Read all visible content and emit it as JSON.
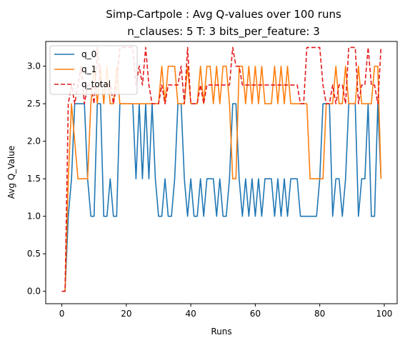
{
  "chart_data": {
    "type": "line",
    "title": "Simp-Cartpole : Avg Q-values over 100 runs",
    "subtitle": "n_clauses: 5 T: 3 bits_per_feature: 3",
    "xlabel": "Runs",
    "ylabel": "Avg Q_Value",
    "xlim": [
      -5,
      104
    ],
    "ylim": [
      -0.165,
      3.33
    ],
    "xticks": [
      0,
      20,
      40,
      60,
      80,
      100
    ],
    "yticks": [
      0.0,
      0.5,
      1.0,
      1.5,
      2.0,
      2.5,
      3.0
    ],
    "legend_position": "top-left",
    "grid": false,
    "x": [
      0,
      1,
      2,
      3,
      4,
      5,
      6,
      7,
      8,
      9,
      10,
      11,
      12,
      13,
      14,
      15,
      16,
      17,
      18,
      19,
      20,
      21,
      22,
      23,
      24,
      25,
      26,
      27,
      28,
      29,
      30,
      31,
      32,
      33,
      34,
      35,
      36,
      37,
      38,
      39,
      40,
      41,
      42,
      43,
      44,
      45,
      46,
      47,
      48,
      49,
      50,
      51,
      52,
      53,
      54,
      55,
      56,
      57,
      58,
      59,
      60,
      61,
      62,
      63,
      64,
      65,
      66,
      67,
      68,
      69,
      70,
      71,
      72,
      73,
      74,
      75,
      76,
      77,
      78,
      79,
      80,
      81,
      82,
      83,
      84,
      85,
      86,
      87,
      88,
      89,
      90,
      91,
      92,
      93,
      94,
      95,
      96,
      97,
      98,
      99
    ],
    "series": [
      {
        "name": "q_0",
        "color": "#1f77b4",
        "style": "solid",
        "values": [
          0,
          0,
          1,
          1.5,
          2.5,
          2.5,
          2.5,
          2.5,
          1.5,
          1,
          1,
          2.5,
          2.5,
          1,
          1,
          1.5,
          1,
          1,
          2.5,
          2.5,
          2.5,
          2.5,
          2.5,
          1.5,
          2.5,
          1.5,
          2.5,
          1.5,
          2.5,
          1.5,
          1,
          1,
          1.5,
          1,
          1,
          1.5,
          2.5,
          2.5,
          1.5,
          1,
          1.5,
          1,
          1,
          1.5,
          1,
          1.5,
          1.5,
          1.5,
          1,
          1.5,
          1,
          1,
          1.5,
          2.5,
          2.5,
          1.5,
          1,
          1.5,
          1,
          1.5,
          1,
          1.5,
          1,
          1.5,
          1.5,
          1.5,
          1,
          1.5,
          1,
          1.5,
          1,
          1.5,
          1.5,
          1.5,
          1,
          1,
          1,
          1,
          1,
          1,
          1.5,
          2.5,
          2.5,
          2.5,
          1,
          1.5,
          1.5,
          1,
          1.5,
          2.5,
          2.5,
          2.5,
          1,
          1.5,
          1.5,
          2.5,
          1,
          1,
          2.5,
          1.5
        ]
      },
      {
        "name": "q_1",
        "color": "#ff7f0e",
        "style": "solid",
        "values": [
          0,
          0,
          1.5,
          2.5,
          2,
          1.5,
          1.5,
          1.5,
          1.5,
          2.5,
          3,
          2.5,
          3,
          2.5,
          3,
          2.5,
          2.5,
          3,
          2.5,
          2.5,
          2.5,
          2.5,
          2.5,
          2.5,
          2.5,
          2.5,
          2.5,
          2.5,
          2.5,
          2.5,
          2.5,
          3,
          2.5,
          3,
          3,
          3,
          2.5,
          2.5,
          2.5,
          3,
          2.5,
          2.5,
          2.5,
          3,
          2.5,
          3,
          3,
          2.5,
          3,
          2.5,
          3,
          3,
          2.5,
          1.5,
          1.5,
          3,
          3,
          2.5,
          3,
          2.5,
          3,
          2.5,
          3,
          2.5,
          2.5,
          2.5,
          3,
          2.5,
          3,
          2.5,
          3,
          2.5,
          2.5,
          2.5,
          2.5,
          2.5,
          2.5,
          1.5,
          1.5,
          1.5,
          1.5,
          1.5,
          2.5,
          2.5,
          2.5,
          3,
          2.5,
          2.5,
          3,
          2.5,
          2.5,
          2.5,
          3,
          2.5,
          2.5,
          2.5,
          2.5,
          3,
          3,
          1.5
        ]
      },
      {
        "name": "q_total",
        "color": "#e41a1c",
        "style": "dashed",
        "values": [
          0,
          0,
          2.5,
          2.75,
          2.5,
          2.75,
          3,
          2.5,
          2.75,
          2.75,
          2.5,
          3.25,
          2.75,
          2.75,
          2.75,
          2.75,
          2.5,
          2.75,
          3.25,
          3.25,
          3.25,
          3.25,
          3.25,
          2.75,
          3,
          2.75,
          3.25,
          2.75,
          2.5,
          2.5,
          2.5,
          2.75,
          2.5,
          2.75,
          2.75,
          2.75,
          2.75,
          3,
          2.5,
          3.25,
          2.5,
          2.5,
          2.5,
          2.75,
          2.5,
          2.75,
          2.75,
          2.75,
          2.75,
          2.75,
          2.75,
          2.75,
          2.75,
          3.25,
          3,
          3,
          2.75,
          2.75,
          2.75,
          2.75,
          2.75,
          2.75,
          2.75,
          2.75,
          2.75,
          2.75,
          2.75,
          2.75,
          2.75,
          2.75,
          2.75,
          2.75,
          2.75,
          2.75,
          2.5,
          2.5,
          3.25,
          3.25,
          3.25,
          3.25,
          3.25,
          2.75,
          2.5,
          2.5,
          2.75,
          2.5,
          2.75,
          2.75,
          2.5,
          3.25,
          3.25,
          3.25,
          2.5,
          2.75,
          2.75,
          3.25,
          2.75,
          2.75,
          2.5,
          3.25
        ]
      }
    ]
  }
}
